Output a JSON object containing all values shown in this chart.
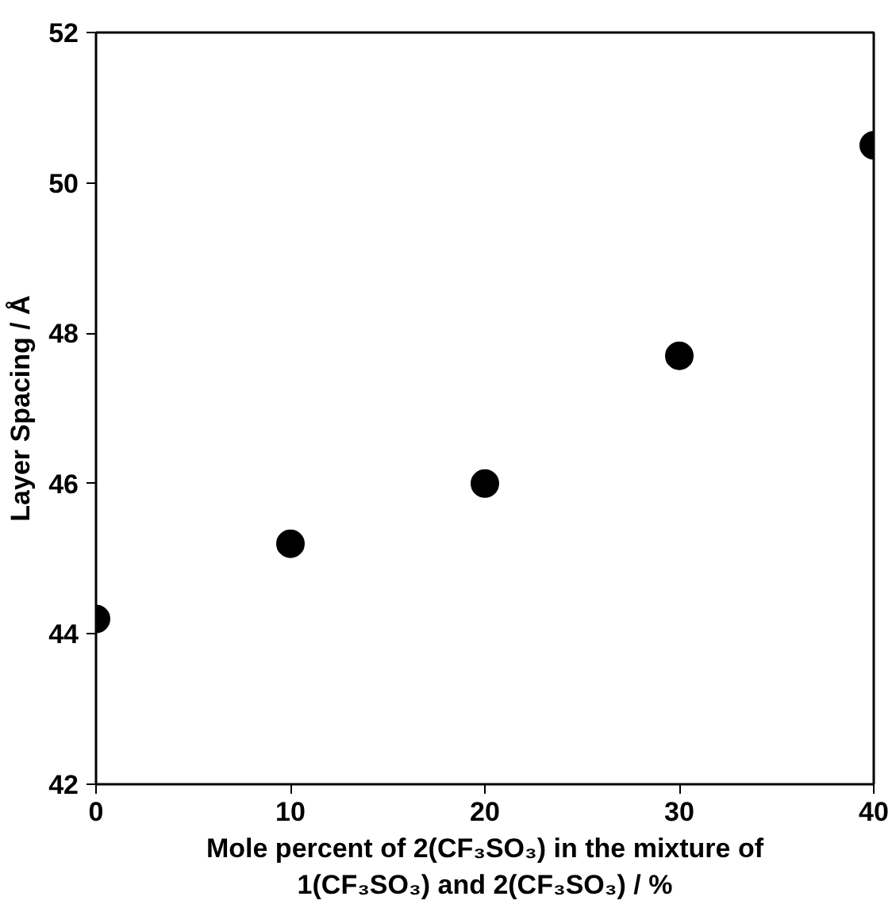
{
  "chart_data": {
    "type": "scatter",
    "xlabel": "Mole percent of 2(CF₃SO₃) in the mixture of 1(CF₃SO₃) and 2(CF₃SO₃) / %",
    "ylabel": "Layer Spacing / Å",
    "x": [
      0,
      10,
      20,
      30,
      40
    ],
    "series": [
      {
        "color": "#000000",
        "values": [
          44.2,
          45.2,
          46.0,
          47.7,
          50.5
        ]
      }
    ],
    "xlim": [
      0,
      40
    ],
    "ylim": [
      42,
      52
    ],
    "xticks": [
      0,
      10,
      20,
      30,
      40
    ],
    "yticks": [
      42,
      44,
      46,
      48,
      50,
      52
    ],
    "grid": false,
    "marker": "circle"
  }
}
